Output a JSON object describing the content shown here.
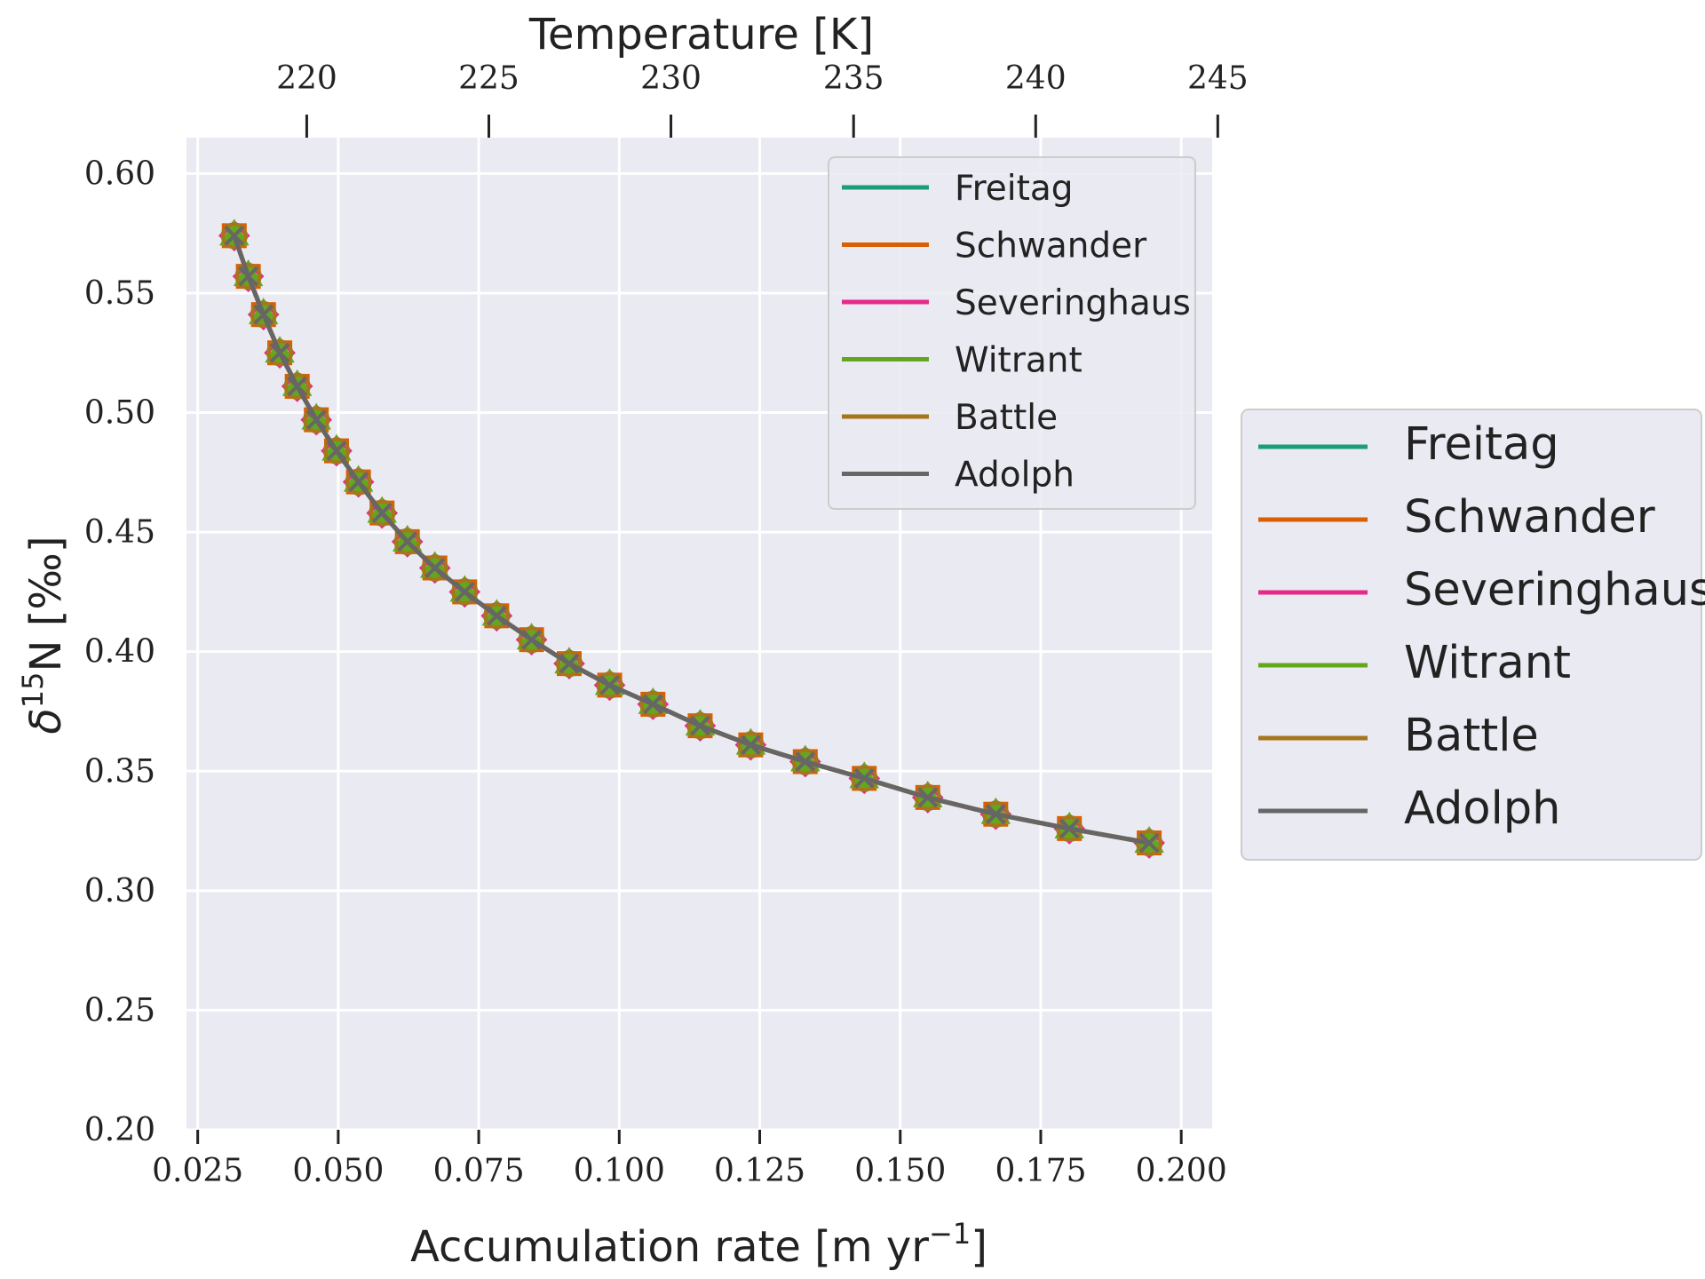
{
  "chart_data": {
    "type": "line",
    "xlabel": "Accumulation rate [m yr",
    "xlabel_sup": "−1",
    "xlabel_end": "]",
    "x2label": "Temperature [K]",
    "ylabel_prefix": "δ",
    "ylabel_sup": "15",
    "ylabel_rest": "N [‰]",
    "xlim": [
      0.023,
      0.2055
    ],
    "ylim": [
      0.2,
      0.615
    ],
    "x_ticks": [
      "0.025",
      "0.050",
      "0.075",
      "0.100",
      "0.125",
      "0.150",
      "0.175",
      "0.200"
    ],
    "x_tick_values": [
      0.025,
      0.05,
      0.075,
      0.1,
      0.125,
      0.15,
      0.175,
      0.2
    ],
    "y_ticks": [
      "0.20",
      "0.25",
      "0.30",
      "0.35",
      "0.40",
      "0.45",
      "0.50",
      "0.55",
      "0.60"
    ],
    "y_tick_values": [
      0.2,
      0.25,
      0.3,
      0.35,
      0.4,
      0.45,
      0.5,
      0.55,
      0.6
    ],
    "x2_ticks": [
      "220",
      "225",
      "230",
      "235",
      "240",
      "245"
    ],
    "x2_tick_positions_in_x_units": [
      0.0444,
      0.0768,
      0.1092,
      0.1417,
      0.1741,
      0.2065
    ],
    "grid": true,
    "legend_placement": "upper right inside, and right outside",
    "x": [
      0.0315,
      0.034,
      0.0367,
      0.0396,
      0.0427,
      0.0461,
      0.0497,
      0.0536,
      0.0578,
      0.0623,
      0.0672,
      0.0725,
      0.0782,
      0.0844,
      0.0911,
      0.0983,
      0.106,
      0.1144,
      0.1234,
      0.1331,
      0.1436,
      0.1549,
      0.167,
      0.1801,
      0.1943
    ],
    "series": [
      {
        "name": "Freitag",
        "color": "#1b9e77",
        "marker": "o",
        "values": [
          0.574,
          0.557,
          0.541,
          0.525,
          0.511,
          0.497,
          0.484,
          0.471,
          0.458,
          0.446,
          0.435,
          0.425,
          0.415,
          0.405,
          0.395,
          0.386,
          0.378,
          0.369,
          0.361,
          0.354,
          0.347,
          0.339,
          0.332,
          0.326,
          0.32
        ]
      },
      {
        "name": "Schwander",
        "color": "#d95f02",
        "marker": "s",
        "values": [
          0.574,
          0.557,
          0.541,
          0.525,
          0.511,
          0.497,
          0.484,
          0.471,
          0.458,
          0.446,
          0.435,
          0.425,
          0.415,
          0.405,
          0.395,
          0.386,
          0.378,
          0.369,
          0.361,
          0.354,
          0.347,
          0.339,
          0.332,
          0.326,
          0.32
        ]
      },
      {
        "name": "Severinghaus",
        "color": "#e7298a",
        "marker": "D",
        "values": [
          0.574,
          0.557,
          0.541,
          0.525,
          0.511,
          0.497,
          0.484,
          0.471,
          0.458,
          0.446,
          0.435,
          0.425,
          0.415,
          0.405,
          0.395,
          0.386,
          0.378,
          0.369,
          0.361,
          0.354,
          0.347,
          0.339,
          0.332,
          0.326,
          0.32
        ]
      },
      {
        "name": "Witrant",
        "color": "#66a61e",
        "marker": "^",
        "values": [
          0.574,
          0.557,
          0.541,
          0.525,
          0.511,
          0.497,
          0.484,
          0.471,
          0.458,
          0.446,
          0.435,
          0.425,
          0.415,
          0.405,
          0.395,
          0.386,
          0.378,
          0.369,
          0.361,
          0.354,
          0.347,
          0.339,
          0.332,
          0.326,
          0.32
        ]
      },
      {
        "name": "Battle",
        "color": "#a6761d",
        "marker": "o",
        "values": [
          0.574,
          0.557,
          0.541,
          0.525,
          0.511,
          0.497,
          0.484,
          0.471,
          0.458,
          0.446,
          0.435,
          0.425,
          0.415,
          0.405,
          0.395,
          0.386,
          0.378,
          0.369,
          0.361,
          0.354,
          0.347,
          0.339,
          0.332,
          0.326,
          0.32
        ]
      },
      {
        "name": "Adolph",
        "color": "#666666",
        "marker": "x",
        "values": [
          0.574,
          0.557,
          0.541,
          0.525,
          0.511,
          0.497,
          0.484,
          0.471,
          0.458,
          0.446,
          0.435,
          0.425,
          0.415,
          0.405,
          0.395,
          0.386,
          0.378,
          0.369,
          0.361,
          0.354,
          0.347,
          0.339,
          0.332,
          0.326,
          0.32
        ]
      }
    ]
  }
}
